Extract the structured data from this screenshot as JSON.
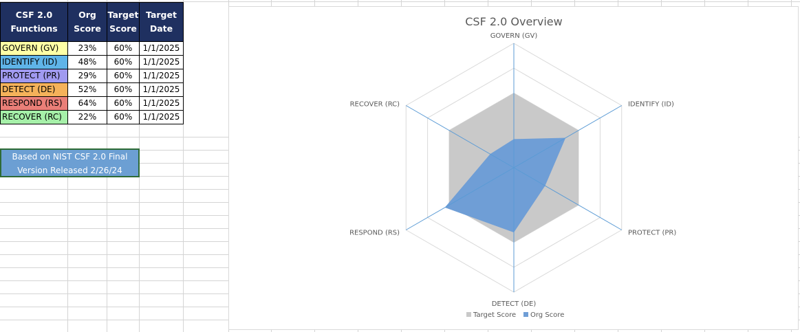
{
  "table": {
    "headers": [
      "CSF 2.0 Functions",
      "Org Score",
      "Target Score",
      "Target Date"
    ],
    "rows": [
      {
        "function": "GOVERN (GV)",
        "org": "23%",
        "target": "60%",
        "date": "1/1/2025",
        "color": "#ffffa6"
      },
      {
        "function": "IDENTIFY (ID)",
        "org": "48%",
        "target": "60%",
        "date": "1/1/2025",
        "color": "#5fb4e8"
      },
      {
        "function": "PROTECT (PR)",
        "org": "29%",
        "target": "60%",
        "date": "1/1/2025",
        "color": "#a09af0"
      },
      {
        "function": "DETECT (DE)",
        "org": "52%",
        "target": "60%",
        "date": "1/1/2025",
        "color": "#f5b25a"
      },
      {
        "function": "RESPOND (RS)",
        "org": "64%",
        "target": "60%",
        "date": "1/1/2025",
        "color": "#ea7f78"
      },
      {
        "function": "RECOVER (RC)",
        "org": "22%",
        "target": "60%",
        "date": "1/1/2025",
        "color": "#a6f0a9"
      }
    ]
  },
  "note": {
    "line1": "Based on NIST CSF 2.0 Final",
    "line2": "Version Released 2/26/24"
  },
  "chart_data": {
    "type": "radar",
    "title": "CSF 2.0 Overview",
    "categories": [
      "GOVERN (GV)",
      "IDENTIFY (ID)",
      "PROTECT (PR)",
      "DETECT (DE)",
      "RESPOND (RS)",
      "RECOVER (RC)"
    ],
    "series": [
      {
        "name": "Target Score",
        "values": [
          0.6,
          0.6,
          0.6,
          0.6,
          0.6,
          0.6
        ],
        "color": "#c9c9c9"
      },
      {
        "name": "Org Score",
        "values": [
          0.23,
          0.48,
          0.29,
          0.52,
          0.64,
          0.22
        ],
        "color": "#6f9ed6"
      }
    ],
    "rmax": 1.0,
    "rings": 5,
    "legend": "bottom",
    "grid": true
  }
}
